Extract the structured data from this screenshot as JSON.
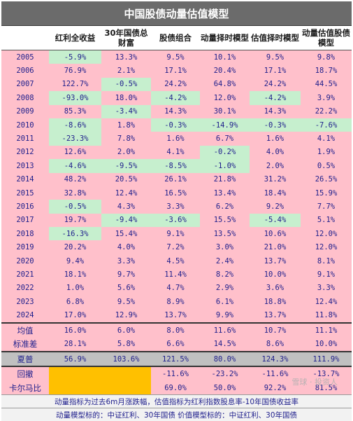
{
  "title": "中国股债动量估值模型",
  "headers": [
    "",
    "红利全收益",
    "30年国债总财富",
    "股债组合",
    "动量择时模型",
    "估值择时模型",
    "动量估值股债模型"
  ],
  "rows": [
    {
      "year": "2005",
      "values": [
        "-5.9%",
        "13.3%",
        "9.5%",
        "10.1%",
        "9.5%",
        "9.8%"
      ],
      "green": [
        1,
        0,
        0,
        0,
        0,
        0
      ]
    },
    {
      "year": "2006",
      "values": [
        "76.9%",
        "2.1%",
        "17.1%",
        "20.4%",
        "17.1%",
        "18.7%"
      ],
      "green": [
        0,
        0,
        0,
        0,
        0,
        0
      ]
    },
    {
      "year": "2007",
      "values": [
        "122.7%",
        "-0.5%",
        "24.2%",
        "64.8%",
        "24.2%",
        "44.5%"
      ],
      "green": [
        0,
        1,
        0,
        0,
        0,
        0
      ]
    },
    {
      "year": "2008",
      "values": [
        "-93.0%",
        "18.0%",
        "-4.2%",
        "12.0%",
        "-4.2%",
        "3.9%"
      ],
      "green": [
        1,
        0,
        1,
        0,
        1,
        0
      ]
    },
    {
      "year": "2009",
      "values": [
        "85.3%",
        "-3.4%",
        "14.3%",
        "30.1%",
        "14.3%",
        "22.2%"
      ],
      "green": [
        0,
        1,
        0,
        0,
        0,
        0
      ]
    },
    {
      "year": "2010",
      "values": [
        "-8.6%",
        "1.8%",
        "-0.3%",
        "-14.9%",
        "-0.3%",
        "-7.6%"
      ],
      "green": [
        1,
        0,
        1,
        1,
        1,
        1
      ]
    },
    {
      "year": "2011",
      "values": [
        "-23.3%",
        "7.8%",
        "1.6%",
        "6.7%",
        "1.6%",
        "4.1%"
      ],
      "green": [
        1,
        0,
        0,
        0,
        0,
        0
      ]
    },
    {
      "year": "2012",
      "values": [
        "12.6%",
        "2.0%",
        "4.1%",
        "-0.2%",
        "4.0%",
        "1.9%"
      ],
      "green": [
        0,
        0,
        0,
        1,
        0,
        0
      ]
    },
    {
      "year": "2013",
      "values": [
        "-4.6%",
        "-9.5%",
        "-8.5%",
        "-1.0%",
        "2.0%",
        "0.5%"
      ],
      "green": [
        1,
        1,
        1,
        1,
        0,
        0
      ]
    },
    {
      "year": "2014",
      "values": [
        "48.2%",
        "20.5%",
        "26.1%",
        "21.8%",
        "31.2%",
        "26.5%"
      ],
      "green": [
        0,
        0,
        0,
        0,
        0,
        0
      ]
    },
    {
      "year": "2015",
      "values": [
        "32.8%",
        "12.4%",
        "16.5%",
        "13.4%",
        "18.4%",
        "15.9%"
      ],
      "green": [
        0,
        0,
        0,
        0,
        0,
        0
      ]
    },
    {
      "year": "2016",
      "values": [
        "-0.5%",
        "4.3%",
        "3.3%",
        "6.2%",
        "9.2%",
        "7.7%"
      ],
      "green": [
        1,
        0,
        0,
        0,
        0,
        0
      ]
    },
    {
      "year": "2017",
      "values": [
        "19.7%",
        "-9.4%",
        "-3.6%",
        "15.5%",
        "-5.4%",
        "5.1%"
      ],
      "green": [
        0,
        1,
        1,
        0,
        1,
        0
      ]
    },
    {
      "year": "2018",
      "values": [
        "-16.3%",
        "15.4%",
        "9.1%",
        "13.5%",
        "10.6%",
        "12.0%"
      ],
      "green": [
        1,
        0,
        0,
        0,
        0,
        0
      ]
    },
    {
      "year": "2019",
      "values": [
        "20.2%",
        "4.0%",
        "7.2%",
        "3.0%",
        "21.0%",
        "12.0%"
      ],
      "green": [
        0,
        0,
        0,
        0,
        0,
        0
      ]
    },
    {
      "year": "2020",
      "values": [
        "9.4%",
        "3.3%",
        "4.5%",
        "2.4%",
        "13.7%",
        "8.1%"
      ],
      "green": [
        0,
        0,
        0,
        0,
        0,
        0
      ]
    },
    {
      "year": "2021",
      "values": [
        "18.1%",
        "9.7%",
        "11.4%",
        "8.2%",
        "10.0%",
        "9.1%"
      ],
      "green": [
        0,
        0,
        0,
        0,
        0,
        0
      ]
    },
    {
      "year": "2022",
      "values": [
        "1.0%",
        "5.6%",
        "4.7%",
        "2.9%",
        "3.6%",
        "3.3%"
      ],
      "green": [
        0,
        0,
        0,
        0,
        0,
        0
      ]
    },
    {
      "year": "2023",
      "values": [
        "6.8%",
        "9.5%",
        "8.9%",
        "6.1%",
        "18.8%",
        "12.4%"
      ],
      "green": [
        0,
        0,
        0,
        0,
        0,
        0
      ]
    },
    {
      "year": "2024",
      "values": [
        "17.0%",
        "12.9%",
        "13.7%",
        "9.9%",
        "13.7%",
        "11.8%"
      ],
      "green": [
        0,
        0,
        0,
        0,
        0,
        0
      ]
    }
  ],
  "mean": {
    "label": "均值",
    "values": [
      "16.0%",
      "6.0%",
      "8.0%",
      "11.6%",
      "10.7%",
      "11.1%"
    ]
  },
  "std": {
    "label": "标准差",
    "values": [
      "28.1%",
      "5.8%",
      "6.6%",
      "14.5%",
      "8.6%",
      "10.0%"
    ]
  },
  "sharpe": {
    "label": "夏普",
    "values": [
      "56.9%",
      "103.6%",
      "121.5%",
      "80.0%",
      "124.3%",
      "111.9%"
    ]
  },
  "drawdown": {
    "label": "回撤",
    "values": [
      "",
      "",
      "-11.6%",
      "-23.2%",
      "-11.6%",
      "-13.7%"
    ]
  },
  "calmar": {
    "label": "卡尔马比",
    "values": [
      "",
      "",
      "69.0%",
      "50.0%",
      "92.2%",
      "81.5%"
    ]
  },
  "notes": [
    "动量指标为过去6m月涨跌幅，估值指标为红利指数股息率-10年国债收益率",
    "动量模型标的：中证红利、30年国债   价值模型标的：中证红利、30年国债"
  ],
  "watermark": "雪球 · 投资人",
  "colors": {
    "pink": "#ffc0cb",
    "green": "#c6efce",
    "orange": "#ffc000",
    "grey": "#c0c0c0",
    "header": "#6b6b6b"
  }
}
